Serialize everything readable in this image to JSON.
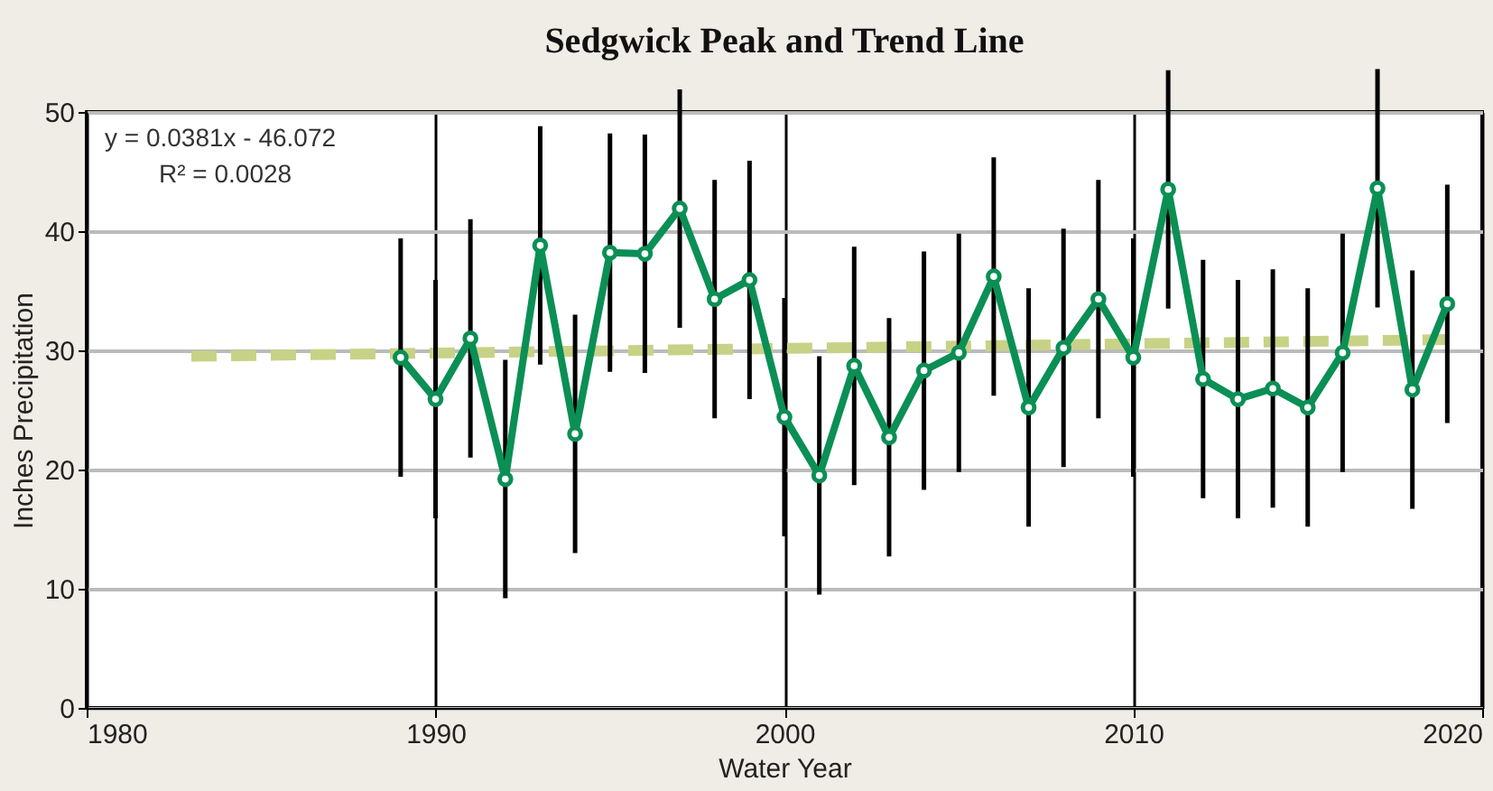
{
  "chart_data": {
    "type": "line",
    "title": "Sedgwick Peak and Trend Line",
    "xlabel": "Water Year",
    "ylabel": "Inches Precipitation",
    "x": [
      1989,
      1990,
      1991,
      1992,
      1993,
      1994,
      1995,
      1996,
      1997,
      1998,
      1999,
      2000,
      2001,
      2002,
      2003,
      2004,
      2005,
      2006,
      2007,
      2008,
      2009,
      2010,
      2011,
      2012,
      2013,
      2014,
      2015,
      2016,
      2017,
      2018,
      2019
    ],
    "series": [
      {
        "type": "line",
        "color": "#c8d286",
        "line_style": "dashed",
        "marker": "none",
        "x": [
          1983,
          2019
        ],
        "values": [
          29.5,
          30.9
        ]
      },
      {
        "color": "#0a8f55",
        "marker": "circle",
        "values": [
          29.4,
          25.9,
          31.0,
          19.2,
          38.8,
          23.0,
          38.2,
          38.1,
          41.9,
          34.3,
          35.9,
          24.4,
          19.5,
          28.7,
          22.7,
          28.3,
          29.8,
          36.2,
          25.2,
          30.2,
          34.3,
          29.4,
          43.5,
          27.6,
          25.9,
          26.8,
          25.2,
          29.8,
          43.6,
          26.7,
          33.9
        ],
        "errors": [
          10,
          10,
          10,
          10,
          10,
          10,
          10,
          10,
          10,
          10,
          10,
          10,
          10,
          10,
          10,
          10,
          10,
          10,
          10,
          10,
          10,
          10,
          10,
          10,
          10,
          10,
          10,
          10,
          10,
          10,
          10
        ]
      }
    ],
    "xlim": [
      1980,
      2020
    ],
    "xticks": [
      1980,
      1990,
      2000,
      2010,
      2020
    ],
    "ylim": [
      0,
      50
    ],
    "yticks": [
      0,
      10,
      20,
      30,
      40,
      50
    ],
    "grid": true,
    "annotations": [
      "y = 0.0381x - 46.072",
      "R² = 0.0028"
    ]
  }
}
